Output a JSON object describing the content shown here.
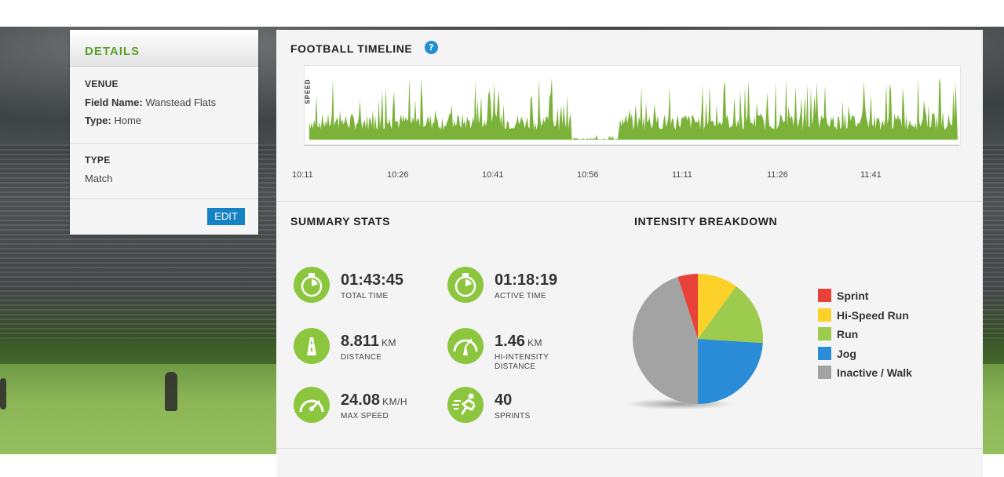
{
  "details": {
    "title": "DETAILS",
    "venue_heading": "VENUE",
    "field_name_label": "Field Name:",
    "field_name_value": "Wanstead Flats",
    "type_label": "Type:",
    "type_value": "Home",
    "type_heading": "TYPE",
    "type_heading_value": "Match",
    "edit_label": "EDIT"
  },
  "timeline": {
    "title": "FOOTBALL TIMELINE",
    "help_glyph": "?",
    "y_label": "SPEED",
    "ticks": [
      "10:11",
      "10:26",
      "10:41",
      "10:56",
      "11:11",
      "11:26",
      "11:41"
    ],
    "color": "#7bb33a"
  },
  "summary": {
    "title": "SUMMARY STATS",
    "stats": [
      {
        "value": "01:43:45",
        "unit": "",
        "label": "TOTAL TIME",
        "label2": "",
        "icon": "stopwatch-icon"
      },
      {
        "value": "01:18:19",
        "unit": "",
        "label": "ACTIVE TIME",
        "label2": "",
        "icon": "stopwatch-icon"
      },
      {
        "value": "8.811",
        "unit": "KM",
        "label": "DISTANCE",
        "label2": "",
        "icon": "road-icon"
      },
      {
        "value": "1.46",
        "unit": "KM",
        "label": "HI-INTENSITY",
        "label2": "DISTANCE",
        "icon": "gauge-road-icon"
      },
      {
        "value": "24.08",
        "unit": "KM/H",
        "label": "MAX SPEED",
        "label2": "",
        "icon": "speedometer-icon"
      },
      {
        "value": "40",
        "unit": "",
        "label": "SPRINTS",
        "label2": "",
        "icon": "sprinter-icon"
      }
    ]
  },
  "intensity": {
    "title": "INTENSITY BREAKDOWN",
    "legend": [
      {
        "label": "Sprint",
        "color": "#e8413a"
      },
      {
        "label": "Hi-Speed Run",
        "color": "#fcd12a"
      },
      {
        "label": "Run",
        "color": "#9ccb4e"
      },
      {
        "label": "Jog",
        "color": "#2a8bd6"
      },
      {
        "label": "Inactive / Walk",
        "color": "#a3a3a3"
      }
    ]
  },
  "chart_data": {
    "type": "pie",
    "title": "INTENSITY BREAKDOWN",
    "categories": [
      "Sprint",
      "Hi-Speed Run",
      "Run",
      "Jog",
      "Inactive / Walk"
    ],
    "values": [
      5,
      10,
      16,
      24,
      45
    ],
    "colors": [
      "#e8413a",
      "#fcd12a",
      "#9ccb4e",
      "#2a8bd6",
      "#a3a3a3"
    ]
  }
}
